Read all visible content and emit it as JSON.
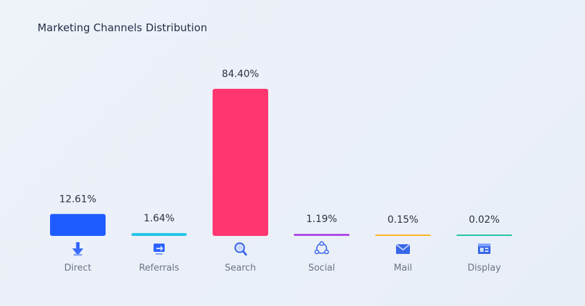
{
  "header": {
    "title": "Marketing Channels Distribution"
  },
  "chart_data": {
    "type": "bar",
    "title": "Marketing Channels Distribution",
    "categories": [
      "Direct",
      "Referrals",
      "Search",
      "Social",
      "Mail",
      "Display"
    ],
    "values": [
      12.61,
      1.64,
      84.4,
      1.19,
      0.15,
      0.02
    ],
    "value_labels": [
      "12.61%",
      "1.64%",
      "84.40%",
      "1.19%",
      "0.15%",
      "0.02%"
    ],
    "colors": [
      "#1f5cff",
      "#22c5e8",
      "#ff3670",
      "#b04ae6",
      "#ffb21e",
      "#1fc6a4"
    ],
    "icons": [
      "download-arrow-icon",
      "referral-monitor-icon",
      "search-magnifier-icon",
      "social-share-icon",
      "mail-envelope-icon",
      "display-browser-icon"
    ],
    "xlabel": "",
    "ylabel": "",
    "ylim": [
      0,
      84.4
    ],
    "grid": false,
    "legend": "none"
  }
}
